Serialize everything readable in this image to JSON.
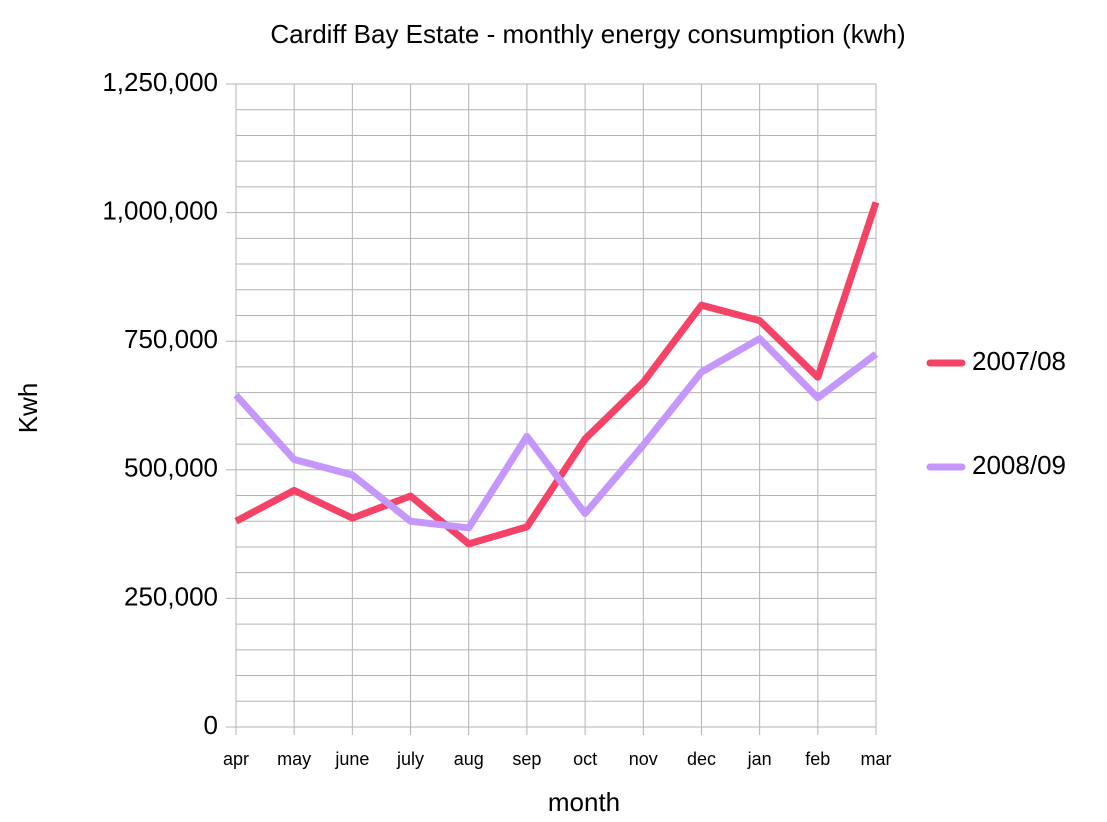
{
  "chart_data": {
    "type": "line",
    "title": "Cardiff Bay Estate - monthly energy consumption (kwh)",
    "x_label": "month",
    "y_label": "Kwh",
    "categories": [
      "apr",
      "may",
      "june",
      "july",
      "aug",
      "sep",
      "oct",
      "nov",
      "dec",
      "jan",
      "feb",
      "mar"
    ],
    "series": [
      {
        "name": "2007/08",
        "color": "#f44366",
        "values": [
          400000,
          460000,
          406000,
          449000,
          356000,
          389000,
          560000,
          670000,
          820000,
          790000,
          680000,
          1020000
        ]
      },
      {
        "name": "2008/09",
        "color": "#c597fc",
        "values": [
          645000,
          520000,
          490000,
          400000,
          387000,
          565000,
          415000,
          548000,
          690000,
          755000,
          640000,
          725000
        ]
      }
    ],
    "ylim": [
      0,
      1250000
    ],
    "yticks": [
      0,
      {
        "value": 250000,
        "label": "250,000"
      },
      {
        "value": 500000,
        "label": "500,000"
      },
      {
        "value": 750000,
        "label": "750,000"
      },
      {
        "value": 1000000,
        "label": "1,000,000"
      },
      {
        "value": 1250000,
        "label": "1,250,000"
      }
    ],
    "minor_yticks": [
      50000,
      100000,
      150000,
      200000,
      300000,
      350000,
      400000,
      450000,
      550000,
      600000,
      650000,
      700000,
      800000,
      850000,
      900000,
      950000,
      1050000,
      1100000,
      1150000,
      1200000
    ],
    "grid": true,
    "legend": "right"
  }
}
